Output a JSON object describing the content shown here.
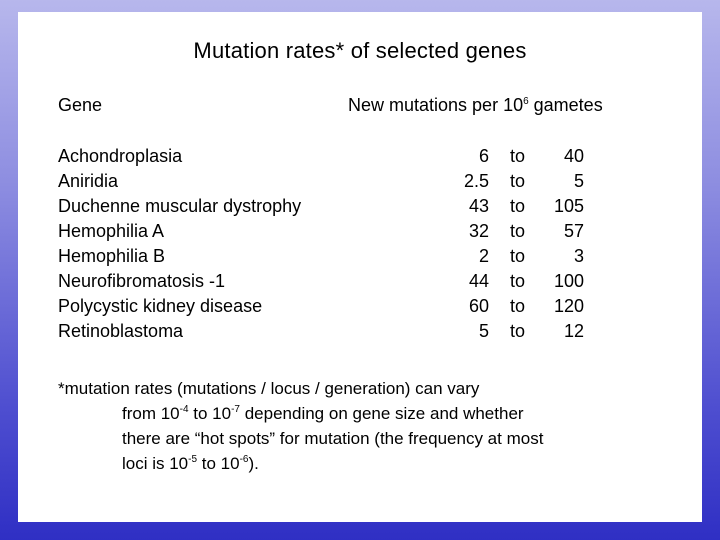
{
  "title": "Mutation rates* of selected genes",
  "header": {
    "gene": "Gene",
    "rate_prefix": "New mutations per 10",
    "rate_exp": "6",
    "rate_suffix": " gametes"
  },
  "rows": [
    {
      "gene": "Achondroplasia",
      "low": "6",
      "to": "to",
      "high": "40"
    },
    {
      "gene": "Aniridia",
      "low": "2.5",
      "to": "to",
      "high": "5"
    },
    {
      "gene": "Duchenne muscular dystrophy",
      "low": "43",
      "to": "to",
      "high": "105"
    },
    {
      "gene": "Hemophilia A",
      "low": "32",
      "to": "to",
      "high": "57"
    },
    {
      "gene": "Hemophilia B",
      "low": "2",
      "to": "to",
      "high": "3"
    },
    {
      "gene": "Neurofibromatosis -1",
      "low": "44",
      "to": "to",
      "high": "100"
    },
    {
      "gene": "Polycystic kidney disease",
      "low": "60",
      "to": "to",
      "high": "120"
    },
    {
      "gene": "Retinoblastoma",
      "low": "5",
      "to": "to",
      "high": "12"
    }
  ],
  "footnote": {
    "l1": "*mutation rates (mutations / locus / generation) can vary",
    "l2a": "from 10",
    "l2e1": "-4",
    "l2b": " to 10",
    "l2e2": "-7",
    "l2c": " depending on gene size and whether",
    "l3": "there are “hot spots” for mutation (the frequency at most",
    "l4a": "loci is 10",
    "l4e1": "-5",
    "l4b": " to 10",
    "l4e2": "-6",
    "l4c": ")."
  }
}
